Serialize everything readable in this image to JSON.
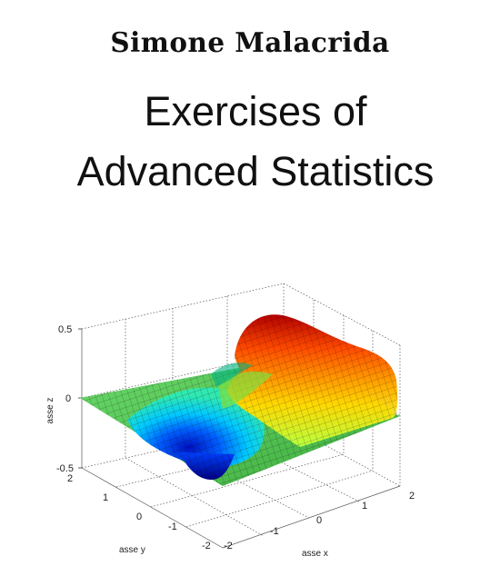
{
  "cover": {
    "author": "Simone Malacrida",
    "title_line1": "Exercises of",
    "title_line2": "Advanced Statistics"
  },
  "figure": {
    "z_ticks": [
      "0.5",
      "0",
      "-0.5"
    ],
    "y_ticks": [
      "2",
      "1",
      "0",
      "-1",
      "-2"
    ],
    "x_ticks": [
      "-2",
      "-1",
      "0",
      "1",
      "2"
    ],
    "z_label": "asse z",
    "y_label": "asse y",
    "x_label": "asse x"
  }
}
